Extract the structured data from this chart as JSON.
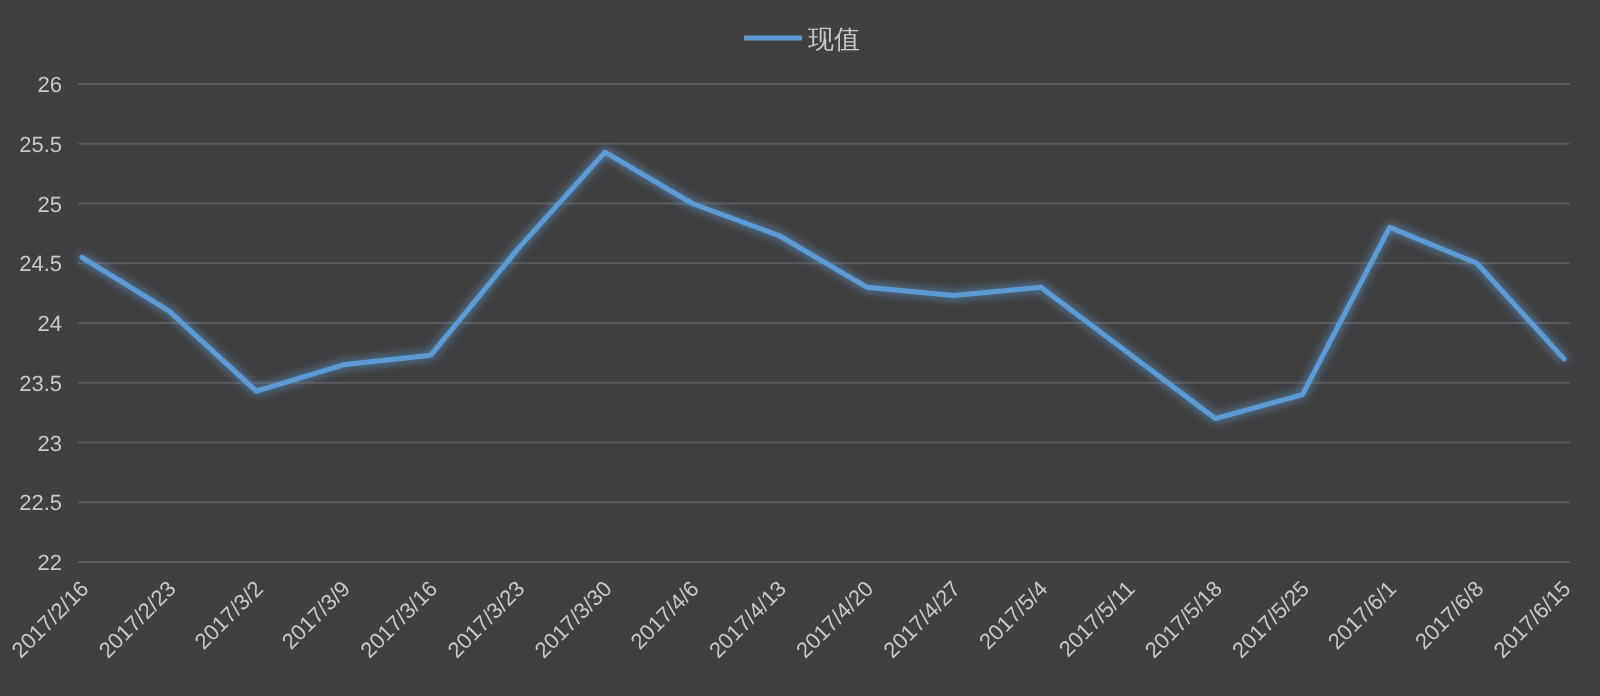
{
  "chart_data": {
    "type": "line",
    "categories": [
      "2017/2/16",
      "2017/2/23",
      "2017/3/2",
      "2017/3/9",
      "2017/3/16",
      "2017/3/23",
      "2017/3/30",
      "2017/4/6",
      "2017/4/13",
      "2017/4/20",
      "2017/4/27",
      "2017/5/4",
      "2017/5/11",
      "2017/5/18",
      "2017/5/25",
      "2017/6/1",
      "2017/6/8",
      "2017/6/15"
    ],
    "series": [
      {
        "name": "现值",
        "color": "#5b9bd5",
        "values": [
          24.55,
          24.1,
          23.43,
          23.65,
          23.73,
          24.62,
          25.43,
          25.0,
          24.73,
          24.3,
          24.23,
          24.3,
          23.75,
          23.2,
          23.4,
          24.8,
          24.5,
          23.7
        ]
      }
    ],
    "ylim": [
      22,
      26
    ],
    "yticks": [
      22,
      22.5,
      23,
      23.5,
      24,
      24.5,
      25,
      25.5,
      26
    ],
    "grid": "y",
    "legend": "top",
    "marker": "none",
    "line_style": "solid"
  }
}
